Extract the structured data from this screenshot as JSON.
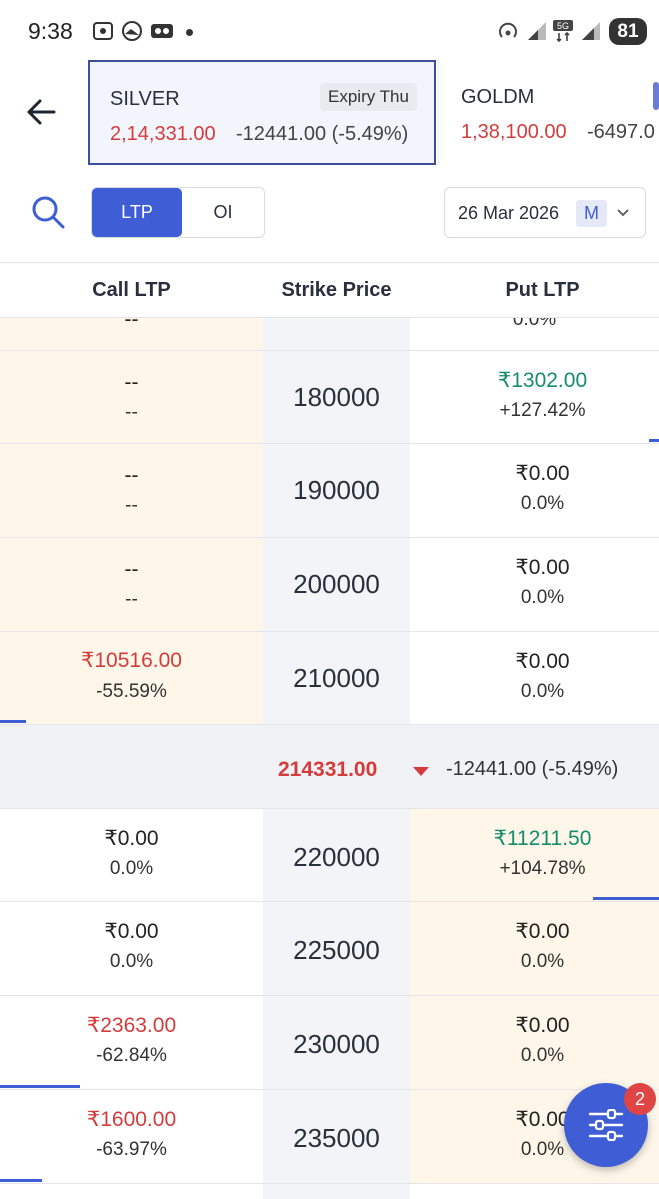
{
  "status_bar": {
    "time": "9:38",
    "battery": "81",
    "network": "5G"
  },
  "header": {
    "active_symbol": {
      "name": "SILVER",
      "expiry_badge": "Expiry Thu",
      "price": "2,14,331.00",
      "change": "-12441.00 (-5.49%)"
    },
    "next_symbol": {
      "name": "GOLDM",
      "price": "1,38,100.00",
      "change": "-6497.0"
    }
  },
  "toolbar": {
    "tabs": [
      "LTP",
      "OI"
    ],
    "selected_tab": "LTP",
    "expiry_date": "26 Mar 2026",
    "expiry_badge": "M"
  },
  "columns": {
    "call": "Call LTP",
    "strike": "Strike Price",
    "put": "Put LTP"
  },
  "partial_top_row": {
    "call_ltp": "--",
    "put_chg": "0.0%"
  },
  "rows_above": [
    {
      "strike": "180000",
      "call_ltp": "--",
      "call_chg": "--",
      "put_ltp": "₹1302.00",
      "put_chg": "+127.42%"
    },
    {
      "strike": "190000",
      "call_ltp": "--",
      "call_chg": "--",
      "put_ltp": "₹0.00",
      "put_chg": "0.0%"
    },
    {
      "strike": "200000",
      "call_ltp": "--",
      "call_chg": "--",
      "put_ltp": "₹0.00",
      "put_chg": "0.0%"
    },
    {
      "strike": "210000",
      "call_ltp": "₹10516.00",
      "call_chg": "-55.59%",
      "put_ltp": "₹0.00",
      "put_chg": "0.0%"
    }
  ],
  "spot": {
    "price": "214331.00",
    "change": "-12441.00 (-5.49%)"
  },
  "rows_below": [
    {
      "strike": "220000",
      "call_ltp": "₹0.00",
      "call_chg": "0.0%",
      "put_ltp": "₹11211.50",
      "put_chg": "+104.78%"
    },
    {
      "strike": "225000",
      "call_ltp": "₹0.00",
      "call_chg": "0.0%",
      "put_ltp": "₹0.00",
      "put_chg": "0.0%"
    },
    {
      "strike": "230000",
      "call_ltp": "₹2363.00",
      "call_chg": "-62.84%",
      "put_ltp": "₹0.00",
      "put_chg": "0.0%"
    },
    {
      "strike": "235000",
      "call_ltp": "₹1600.00",
      "call_chg": "-63.97%",
      "put_ltp": "₹0.00",
      "put_chg": "0.0%"
    }
  ],
  "fab": {
    "badge": "2",
    "icon": "filter-sliders-icon"
  },
  "colors": {
    "accent": "#3f5ed6",
    "loss": "#d43c3c",
    "gain": "#148c6e",
    "itm_bg": "#fdf6e9"
  }
}
